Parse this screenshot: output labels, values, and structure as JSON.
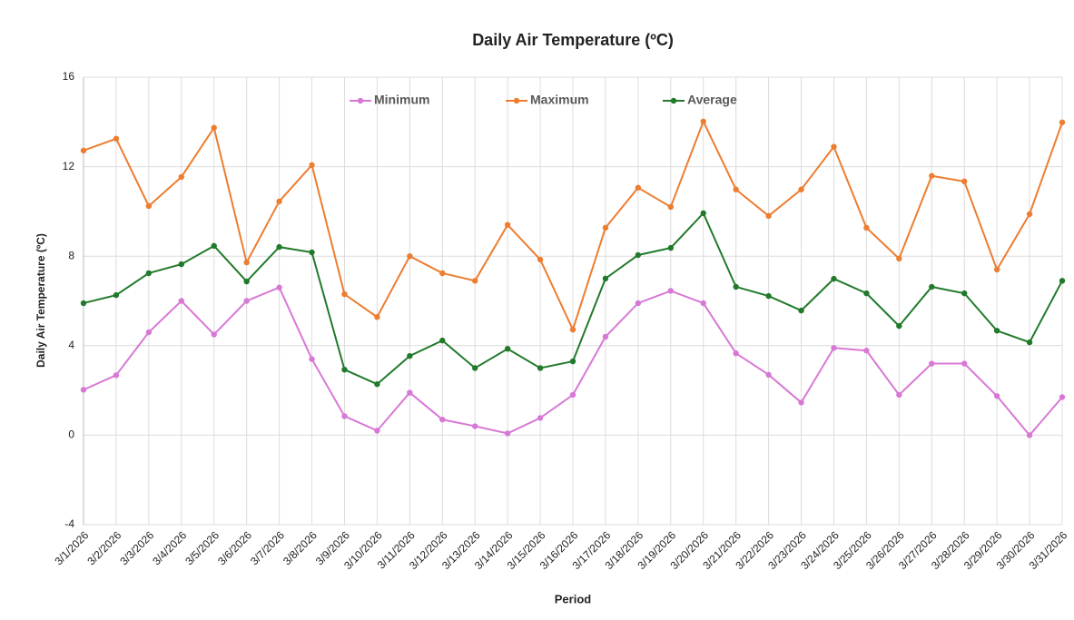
{
  "chart_data": {
    "type": "line",
    "title": "Daily Air Temperature (ºC)",
    "x_label": "Period",
    "y_label": "Daily Air Temperature (ºC)",
    "categories": [
      "3/1/2026",
      "3/2/2026",
      "3/3/2026",
      "3/4/2026",
      "3/5/2026",
      "3/6/2026",
      "3/7/2026",
      "3/8/2026",
      "3/9/2026",
      "3/10/2026",
      "3/11/2026",
      "3/12/2026",
      "3/13/2026",
      "3/14/2026",
      "3/15/2026",
      "3/16/2026",
      "3/17/2026",
      "3/18/2026",
      "3/19/2026",
      "3/20/2026",
      "3/21/2026",
      "3/22/2026",
      "3/23/2026",
      "3/24/2026",
      "3/25/2026",
      "3/26/2026",
      "3/27/2026",
      "3/28/2026",
      "3/29/2026",
      "3/30/2026",
      "3/31/2026"
    ],
    "series": [
      {
        "name": "Minimum",
        "color": "#d878d6",
        "values": [
          2.03,
          2.68,
          4.6,
          6.0,
          4.5,
          6.0,
          6.6,
          3.4,
          0.85,
          0.2,
          1.9,
          0.7,
          0.4,
          0.08,
          0.77,
          1.8,
          4.4,
          5.9,
          6.45,
          5.9,
          3.66,
          2.7,
          1.46,
          3.9,
          3.78,
          1.8,
          3.2,
          3.2,
          1.75,
          0,
          1.7
        ]
      },
      {
        "name": "Maximum",
        "color": "#ed7d31",
        "values": [
          12.72,
          13.25,
          10.24,
          11.54,
          13.74,
          7.72,
          10.45,
          12.07,
          6.3,
          5.28,
          8.0,
          7.24,
          6.9,
          9.4,
          7.85,
          4.72,
          9.27,
          11.06,
          10.2,
          14.02,
          10.98,
          9.8,
          10.98,
          12.89,
          9.27,
          7.89,
          11.59,
          11.34,
          7.4,
          9.88,
          13.98
        ]
      },
      {
        "name": "Average",
        "color": "#217a2b",
        "values": [
          5.9,
          6.26,
          7.24,
          7.64,
          8.46,
          6.87,
          8.41,
          8.17,
          2.93,
          2.28,
          3.54,
          4.23,
          3.0,
          3.86,
          3.0,
          3.3,
          7.0,
          8.05,
          8.37,
          9.92,
          6.63,
          6.22,
          5.57,
          6.99,
          6.34,
          4.88,
          6.63,
          6.34,
          4.67,
          4.15,
          6.9
        ]
      }
    ],
    "ylim": [
      -4,
      16
    ],
    "yticks": [
      -4,
      0,
      4,
      8,
      12,
      16
    ],
    "grid": true,
    "legend": "top"
  }
}
